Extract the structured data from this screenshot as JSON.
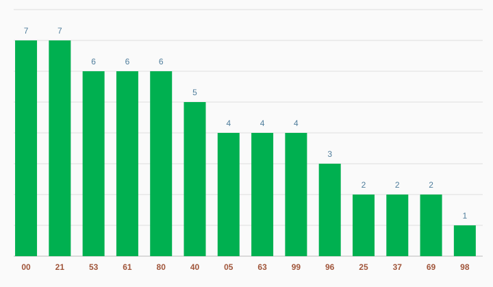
{
  "chart_data": {
    "type": "bar",
    "categories": [
      "00",
      "21",
      "53",
      "61",
      "80",
      "40",
      "05",
      "63",
      "99",
      "96",
      "25",
      "37",
      "69",
      "98"
    ],
    "values": [
      7,
      7,
      6,
      6,
      6,
      5,
      4,
      4,
      4,
      3,
      2,
      2,
      2,
      1
    ],
    "color": "#00b050",
    "ylim": [
      0,
      8
    ],
    "yticks": [
      0,
      1,
      2,
      3,
      4,
      5,
      6,
      7,
      8
    ],
    "grid": true
  }
}
